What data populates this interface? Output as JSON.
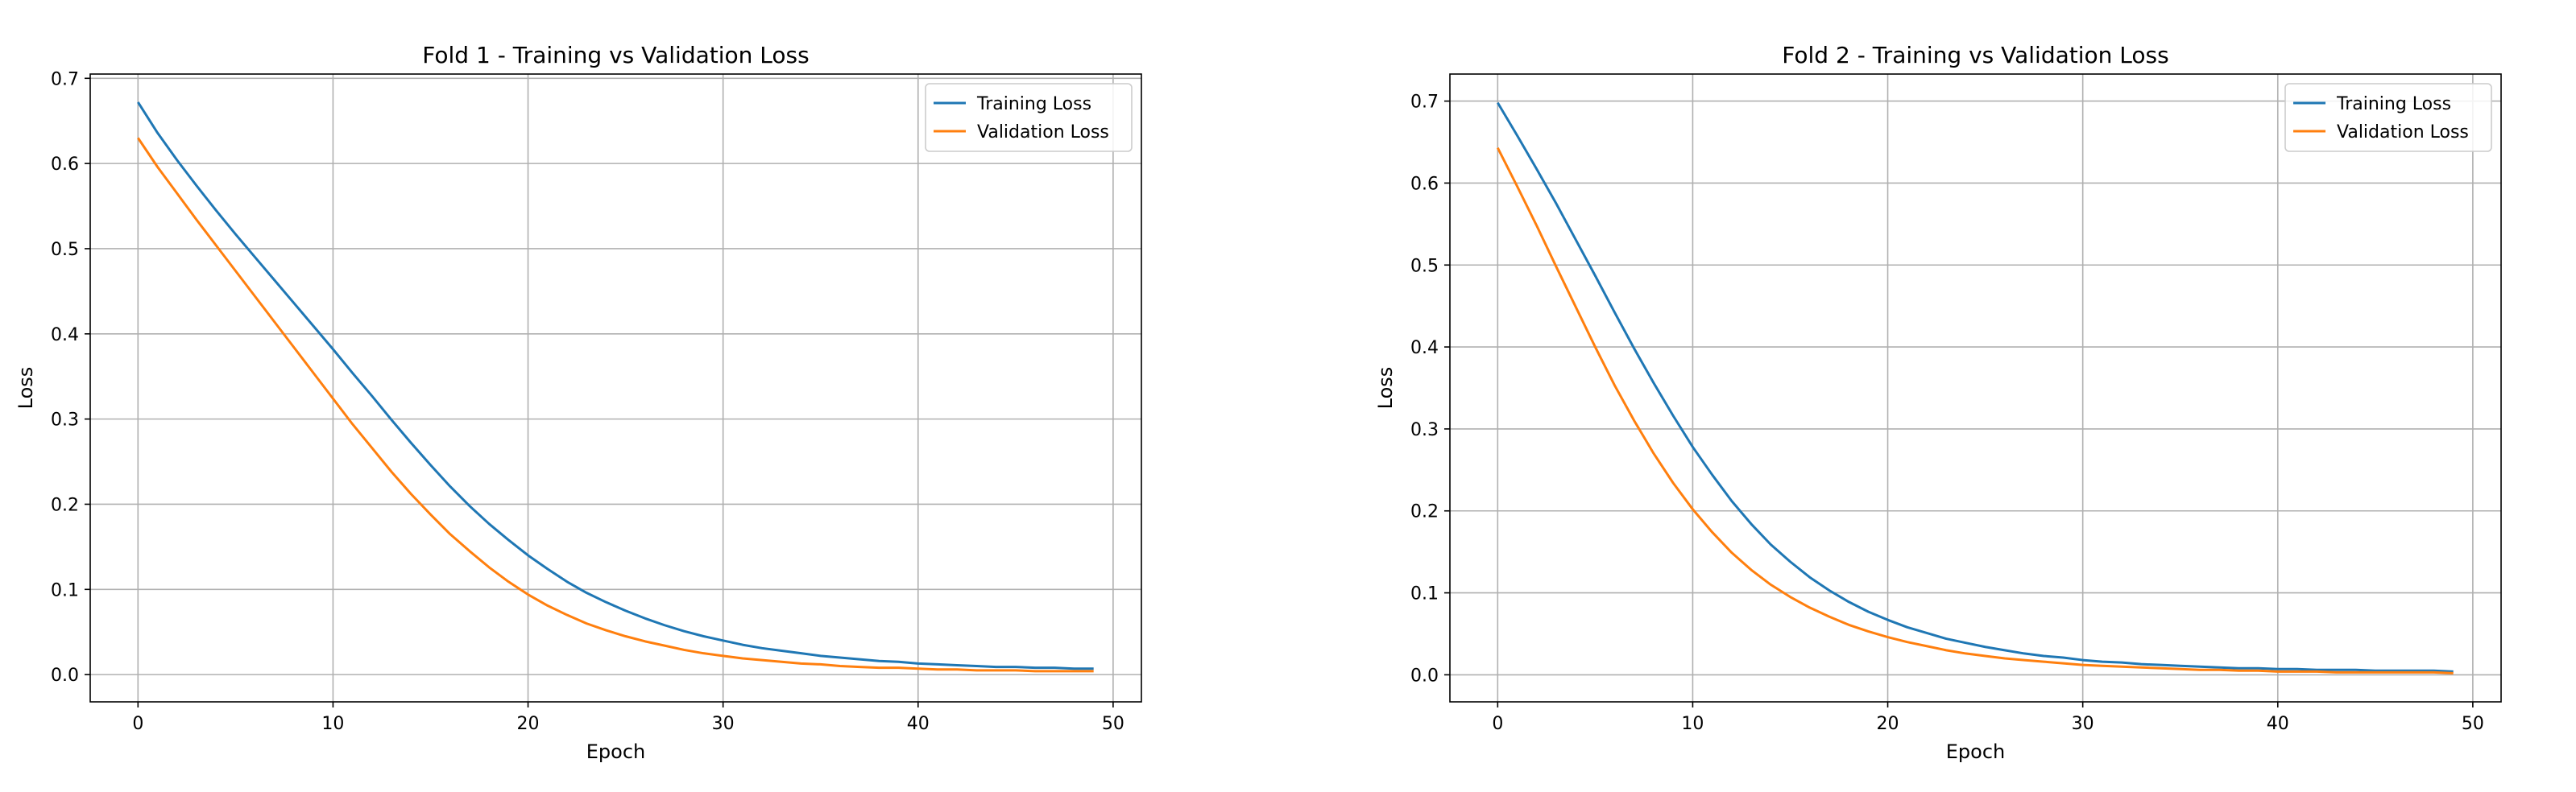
{
  "chart_data": [
    {
      "type": "line",
      "title": "Fold 1 - Training vs Validation Loss",
      "xlabel": "Epoch",
      "ylabel": "Loss",
      "xlim": [
        -2.45,
        51.45
      ],
      "ylim": [
        -0.032,
        0.705
      ],
      "xticks": [
        0,
        10,
        20,
        30,
        40,
        50
      ],
      "yticks": [
        0.0,
        0.1,
        0.2,
        0.3,
        0.4,
        0.5,
        0.6,
        0.7
      ],
      "grid": true,
      "legend_position": "top-right",
      "series": [
        {
          "name": "Training Loss",
          "color": "#1f77b4",
          "x": [
            0,
            1,
            2,
            3,
            4,
            5,
            6,
            7,
            8,
            9,
            10,
            11,
            12,
            13,
            14,
            15,
            16,
            17,
            18,
            19,
            20,
            21,
            22,
            23,
            24,
            25,
            26,
            27,
            28,
            29,
            30,
            31,
            32,
            33,
            34,
            35,
            36,
            37,
            38,
            39,
            40,
            41,
            42,
            43,
            44,
            45,
            46,
            47,
            48,
            49
          ],
          "y": [
            0.672,
            0.636,
            0.604,
            0.574,
            0.545,
            0.517,
            0.49,
            0.463,
            0.436,
            0.409,
            0.382,
            0.354,
            0.327,
            0.299,
            0.272,
            0.246,
            0.221,
            0.198,
            0.177,
            0.158,
            0.14,
            0.124,
            0.109,
            0.096,
            0.085,
            0.075,
            0.066,
            0.058,
            0.051,
            0.045,
            0.04,
            0.035,
            0.031,
            0.028,
            0.025,
            0.022,
            0.02,
            0.018,
            0.016,
            0.015,
            0.013,
            0.012,
            0.011,
            0.01,
            0.009,
            0.009,
            0.008,
            0.008,
            0.007,
            0.007
          ]
        },
        {
          "name": "Validation Loss",
          "color": "#ff7f0e",
          "x": [
            0,
            1,
            2,
            3,
            4,
            5,
            6,
            7,
            8,
            9,
            10,
            11,
            12,
            13,
            14,
            15,
            16,
            17,
            18,
            19,
            20,
            21,
            22,
            23,
            24,
            25,
            26,
            27,
            28,
            29,
            30,
            31,
            32,
            33,
            34,
            35,
            36,
            37,
            38,
            39,
            40,
            41,
            42,
            43,
            44,
            45,
            46,
            47,
            48,
            49
          ],
          "y": [
            0.63,
            0.596,
            0.565,
            0.534,
            0.504,
            0.474,
            0.444,
            0.414,
            0.384,
            0.354,
            0.324,
            0.294,
            0.266,
            0.238,
            0.212,
            0.188,
            0.165,
            0.145,
            0.126,
            0.109,
            0.094,
            0.081,
            0.07,
            0.06,
            0.052,
            0.045,
            0.039,
            0.034,
            0.029,
            0.025,
            0.022,
            0.019,
            0.017,
            0.015,
            0.013,
            0.012,
            0.01,
            0.009,
            0.008,
            0.008,
            0.007,
            0.006,
            0.006,
            0.005,
            0.005,
            0.005,
            0.004,
            0.004,
            0.004,
            0.004
          ]
        }
      ]
    },
    {
      "type": "line",
      "title": "Fold 2 - Training vs Validation Loss",
      "xlabel": "Epoch",
      "ylabel": "Loss",
      "xlim": [
        -2.45,
        51.45
      ],
      "ylim": [
        -0.033,
        0.733
      ],
      "xticks": [
        0,
        10,
        20,
        30,
        40,
        50
      ],
      "yticks": [
        0.0,
        0.1,
        0.2,
        0.3,
        0.4,
        0.5,
        0.6,
        0.7
      ],
      "grid": true,
      "legend_position": "top-right",
      "series": [
        {
          "name": "Training Loss",
          "color": "#1f77b4",
          "x": [
            0,
            1,
            2,
            3,
            4,
            5,
            6,
            7,
            8,
            9,
            10,
            11,
            12,
            13,
            14,
            15,
            16,
            17,
            18,
            19,
            20,
            21,
            22,
            23,
            24,
            25,
            26,
            27,
            28,
            29,
            30,
            31,
            32,
            33,
            34,
            35,
            36,
            37,
            38,
            39,
            40,
            41,
            42,
            43,
            44,
            45,
            46,
            47,
            48,
            49
          ],
          "y": [
            0.698,
            0.658,
            0.617,
            0.575,
            0.531,
            0.487,
            0.442,
            0.398,
            0.356,
            0.316,
            0.278,
            0.244,
            0.212,
            0.184,
            0.159,
            0.138,
            0.119,
            0.103,
            0.089,
            0.077,
            0.067,
            0.058,
            0.051,
            0.044,
            0.039,
            0.034,
            0.03,
            0.026,
            0.023,
            0.021,
            0.018,
            0.016,
            0.015,
            0.013,
            0.012,
            0.011,
            0.01,
            0.009,
            0.008,
            0.008,
            0.007,
            0.007,
            0.006,
            0.006,
            0.006,
            0.005,
            0.005,
            0.005,
            0.005,
            0.004
          ]
        },
        {
          "name": "Validation Loss",
          "color": "#ff7f0e",
          "x": [
            0,
            1,
            2,
            3,
            4,
            5,
            6,
            7,
            8,
            9,
            10,
            11,
            12,
            13,
            14,
            15,
            16,
            17,
            18,
            19,
            20,
            21,
            22,
            23,
            24,
            25,
            26,
            27,
            28,
            29,
            30,
            31,
            32,
            33,
            34,
            35,
            36,
            37,
            38,
            39,
            40,
            41,
            42,
            43,
            44,
            45,
            46,
            47,
            48,
            49
          ],
          "y": [
            0.643,
            0.596,
            0.548,
            0.498,
            0.449,
            0.4,
            0.353,
            0.31,
            0.27,
            0.234,
            0.202,
            0.174,
            0.149,
            0.128,
            0.11,
            0.095,
            0.082,
            0.071,
            0.061,
            0.053,
            0.046,
            0.04,
            0.035,
            0.03,
            0.026,
            0.023,
            0.02,
            0.018,
            0.016,
            0.014,
            0.012,
            0.011,
            0.01,
            0.009,
            0.008,
            0.007,
            0.006,
            0.006,
            0.005,
            0.005,
            0.004,
            0.004,
            0.004,
            0.003,
            0.003,
            0.003,
            0.003,
            0.003,
            0.003,
            0.002
          ]
        }
      ]
    }
  ]
}
